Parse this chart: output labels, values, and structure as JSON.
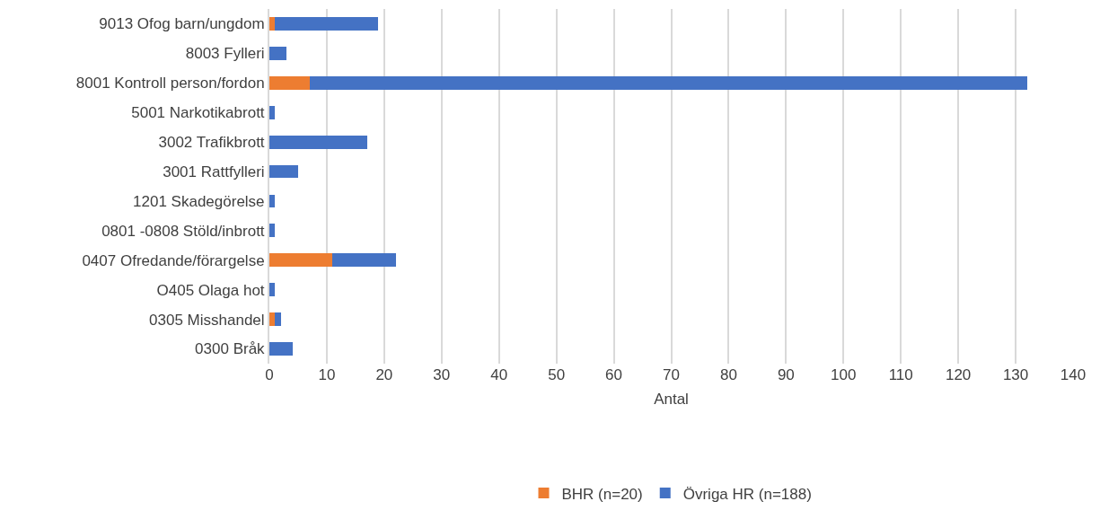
{
  "chart_data": {
    "type": "bar",
    "orientation": "horizontal",
    "stacked": true,
    "categories": [
      "9013 Ofog barn/ungdom",
      "8003 Fylleri",
      "8001 Kontroll person/fordon",
      "5001 Narkotikabrott",
      "3002 Trafikbrott",
      "3001 Rattfylleri",
      "1201 Skadegörelse",
      "0801 -0808 Stöld/inbrott",
      "0407 Ofredande/förargelse",
      "O405 Olaga hot",
      "0305 Misshandel",
      "0300 Bråk"
    ],
    "series": [
      {
        "name": "BHR (n=20)",
        "color": "#ed7d31",
        "values": [
          1,
          0,
          7,
          0,
          0,
          0,
          0,
          0,
          11,
          0,
          1,
          0
        ]
      },
      {
        "name": "Övriga HR (n=188)",
        "color": "#4472c4",
        "values": [
          18,
          3,
          125,
          1,
          17,
          5,
          1,
          1,
          11,
          1,
          1,
          4
        ]
      }
    ],
    "xlabel": "Antal",
    "xlim": [
      0,
      140
    ],
    "xticks": [
      0,
      10,
      20,
      30,
      40,
      50,
      60,
      70,
      80,
      90,
      100,
      110,
      120,
      130,
      140
    ],
    "grid": "x",
    "legend": "bottom"
  }
}
